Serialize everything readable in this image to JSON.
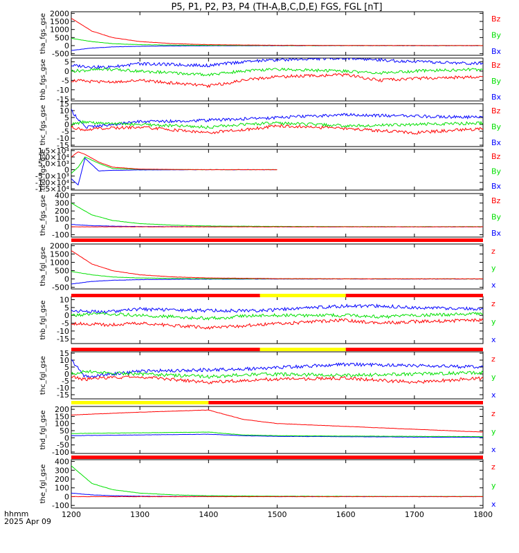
{
  "title": "P5, P1, P2, P3, P4 (TH-A,B,C,D,E) FGS, FGL [nT]",
  "time_label": "hhmm",
  "date_label": "2025 Apr 09",
  "colors": {
    "x": "#0000ff",
    "y": "#00e000",
    "z": "#ff0000",
    "flag_red": "#ff0000",
    "flag_yellow": "#ffff00"
  },
  "chart_data": [
    {
      "type": "line",
      "ylabel": "tha_fgs_gse",
      "yticks": [
        "2000",
        "1500",
        "1000",
        "500",
        "0",
        "-500"
      ],
      "ylim": [
        -600,
        2100
      ],
      "x": [
        1200,
        1230,
        1260,
        1300,
        1350,
        1400,
        1500,
        1600,
        1800
      ],
      "series": [
        {
          "name": "Bz",
          "color": "#ff0000",
          "values": [
            1700,
            900,
            500,
            250,
            120,
            60,
            20,
            10,
            5
          ]
        },
        {
          "name": "By",
          "color": "#00e000",
          "values": [
            450,
            250,
            120,
            60,
            30,
            15,
            8,
            5,
            3
          ]
        },
        {
          "name": "Bx",
          "color": "#0000ff",
          "values": [
            -300,
            -150,
            -80,
            -40,
            -20,
            -10,
            -5,
            -3,
            -2
          ]
        }
      ]
    },
    {
      "type": "line",
      "ylabel": "thb_fgs_gse",
      "yticks": [
        "5",
        "0",
        "-5",
        "-10",
        "-15"
      ],
      "ylim": [
        -16,
        7
      ],
      "x": [
        1200,
        1250,
        1300,
        1400,
        1450,
        1500,
        1600,
        1650,
        1700,
        1800
      ],
      "series": [
        {
          "name": "Bz",
          "color": "#ff0000",
          "values": [
            -5,
            -6,
            -5,
            -8,
            -5,
            -3,
            -2,
            -5,
            -4,
            -3
          ]
        },
        {
          "name": "By",
          "color": "#00e000",
          "values": [
            0,
            1,
            0,
            -2,
            0,
            1,
            0,
            -1,
            0,
            1
          ]
        },
        {
          "name": "Bx",
          "color": "#0000ff",
          "values": [
            3,
            2,
            4,
            3,
            5,
            6,
            7,
            6,
            5,
            4
          ]
        }
      ]
    },
    {
      "type": "line",
      "ylabel": "thc_fgs_gse",
      "yticks": [
        "15",
        "10",
        "5",
        "0",
        "-5",
        "-10",
        "-15"
      ],
      "ylim": [
        -16,
        15
      ],
      "x": [
        1200,
        1220,
        1240,
        1300,
        1400,
        1450,
        1500,
        1600,
        1700,
        1800
      ],
      "series": [
        {
          "name": "Bz",
          "color": "#ff0000",
          "values": [
            -2,
            -4,
            -3,
            -2,
            -6,
            -4,
            -1,
            -3,
            -6,
            -3
          ]
        },
        {
          "name": "By",
          "color": "#00e000",
          "values": [
            0,
            2,
            1,
            0,
            -2,
            0,
            1,
            -1,
            0,
            1
          ]
        },
        {
          "name": "Bx",
          "color": "#0000ff",
          "values": [
            10,
            -2,
            -1,
            2,
            3,
            4,
            5,
            7,
            6,
            5
          ]
        }
      ]
    },
    {
      "type": "line",
      "ylabel": "thd_fgs_gse",
      "yticks": [
        "1.5×10⁴",
        "1.0×10⁴",
        "5.0×10³",
        "0",
        "-5.0×10³",
        "-1.0×10⁴",
        "-1.5×10⁴"
      ],
      "ylim": [
        -16000,
        16000
      ],
      "x": [
        1200,
        1210,
        1220,
        1240,
        1260,
        1300,
        1350,
        1400,
        1500
      ],
      "series": [
        {
          "name": "Bz",
          "color": "#ff0000",
          "values": [
            10000,
            14000,
            12000,
            6000,
            2000,
            500,
            200,
            0,
            0
          ]
        },
        {
          "name": "By",
          "color": "#00e000",
          "values": [
            -3000,
            2000,
            10000,
            5000,
            1000,
            300,
            100,
            0,
            0
          ]
        },
        {
          "name": "Bx",
          "color": "#0000ff",
          "values": [
            -7000,
            -12000,
            9000,
            -1000,
            -500,
            -200,
            -100,
            0,
            0
          ]
        }
      ]
    },
    {
      "type": "line",
      "ylabel": "the_fgs_gse",
      "yticks": [
        "400",
        "300",
        "200",
        "100",
        "0",
        "-100"
      ],
      "ylim": [
        -130,
        420
      ],
      "x": [
        1200,
        1230,
        1260,
        1300,
        1350,
        1400,
        1500,
        1600,
        1700,
        1800
      ],
      "series": [
        {
          "name": "Bz",
          "color": "#ff0000",
          "values": [
            0,
            0,
            0,
            0,
            0,
            0,
            0,
            0,
            0,
            0
          ]
        },
        {
          "name": "By",
          "color": "#00e000",
          "values": [
            300,
            150,
            80,
            40,
            20,
            10,
            5,
            3,
            2,
            2
          ]
        },
        {
          "name": "Bx",
          "color": "#0000ff",
          "values": [
            30,
            15,
            8,
            4,
            2,
            1,
            0,
            0,
            0,
            0
          ]
        }
      ]
    },
    {
      "type": "line",
      "ylabel": "tha_fgl_gse",
      "yticks": [
        "2000",
        "1500",
        "1000",
        "500",
        "0",
        "-500"
      ],
      "ylim": [
        -600,
        2100
      ],
      "x": [
        1200,
        1230,
        1260,
        1300,
        1350,
        1400,
        1500,
        1600,
        1800
      ],
      "series": [
        {
          "name": "z",
          "color": "#ff0000",
          "values": [
            1700,
            900,
            500,
            250,
            120,
            60,
            20,
            10,
            5
          ]
        },
        {
          "name": "y",
          "color": "#00e000",
          "values": [
            450,
            250,
            120,
            60,
            30,
            15,
            8,
            5,
            3
          ]
        },
        {
          "name": "x",
          "color": "#0000ff",
          "values": [
            -300,
            -150,
            -80,
            -40,
            -20,
            -10,
            -5,
            -3,
            -2
          ]
        }
      ]
    },
    {
      "type": "line",
      "ylabel": "thb_fgl_gse",
      "yticks": [
        "10",
        "5",
        "0",
        "-5",
        "-10",
        "-15"
      ],
      "ylim": [
        -18,
        12
      ],
      "x": [
        1200,
        1250,
        1300,
        1400,
        1475,
        1600,
        1650,
        1700,
        1800
      ],
      "series": [
        {
          "name": "z",
          "color": "#ff0000",
          "values": [
            -5,
            -6,
            -5,
            -8,
            -6,
            -3,
            -5,
            -4,
            -3
          ]
        },
        {
          "name": "y",
          "color": "#00e000",
          "values": [
            0,
            1,
            0,
            -2,
            0,
            0,
            -1,
            0,
            1
          ]
        },
        {
          "name": "x",
          "color": "#0000ff",
          "values": [
            3,
            2,
            4,
            3,
            3,
            6,
            6,
            5,
            4
          ]
        }
      ]
    },
    {
      "type": "line",
      "ylabel": "thc_fgl_gse",
      "yticks": [
        "15",
        "10",
        "5",
        "0",
        "-5",
        "-10",
        "-15"
      ],
      "ylim": [
        -18,
        16
      ],
      "x": [
        1200,
        1220,
        1240,
        1300,
        1400,
        1475,
        1600,
        1700,
        1800
      ],
      "series": [
        {
          "name": "z",
          "color": "#ff0000",
          "values": [
            -2,
            -4,
            -3,
            -2,
            -6,
            -4,
            -3,
            -6,
            -3
          ]
        },
        {
          "name": "y",
          "color": "#00e000",
          "values": [
            0,
            2,
            1,
            0,
            -2,
            0,
            -1,
            0,
            1
          ]
        },
        {
          "name": "x",
          "color": "#0000ff",
          "values": [
            10,
            -2,
            -1,
            2,
            3,
            4,
            7,
            6,
            5
          ]
        }
      ]
    },
    {
      "type": "line",
      "ylabel": "thd_fgl_gse",
      "yticks": [
        "200",
        "150",
        "100",
        "50",
        "0",
        "-50",
        "-100"
      ],
      "ylim": [
        -110,
        220
      ],
      "x": [
        1200,
        1300,
        1400,
        1450,
        1500,
        1600,
        1700,
        1800
      ],
      "series": [
        {
          "name": "z",
          "color": "#ff0000",
          "values": [
            160,
            180,
            195,
            130,
            100,
            80,
            60,
            40
          ]
        },
        {
          "name": "y",
          "color": "#00e000",
          "values": [
            30,
            35,
            40,
            20,
            15,
            12,
            10,
            8
          ]
        },
        {
          "name": "x",
          "color": "#0000ff",
          "values": [
            15,
            20,
            25,
            15,
            10,
            8,
            5,
            3
          ]
        }
      ]
    },
    {
      "type": "line",
      "ylabel": "the_fgl_gse",
      "yticks": [
        "400",
        "300",
        "200",
        "100",
        "0",
        "-100"
      ],
      "ylim": [
        -130,
        420
      ],
      "x": [
        1200,
        1230,
        1260,
        1300,
        1350,
        1400,
        1500,
        1600,
        1700,
        1800
      ],
      "series": [
        {
          "name": "z",
          "color": "#ff0000",
          "values": [
            0,
            0,
            0,
            0,
            0,
            0,
            0,
            0,
            0,
            0
          ]
        },
        {
          "name": "y",
          "color": "#00e000",
          "values": [
            350,
            150,
            80,
            40,
            20,
            10,
            5,
            3,
            2,
            2
          ]
        },
        {
          "name": "x",
          "color": "#0000ff",
          "values": [
            40,
            20,
            10,
            5,
            2,
            1,
            0,
            0,
            0,
            0
          ]
        }
      ]
    }
  ],
  "flag_bars": [
    {
      "after_panel": 4,
      "segments": [
        {
          "from": 1200,
          "to": 1800,
          "color": "red"
        }
      ]
    },
    {
      "after_panel": 5,
      "segments": [
        {
          "from": 1200,
          "to": 1475,
          "color": "red"
        },
        {
          "from": 1475,
          "to": 1600,
          "color": "yellow"
        },
        {
          "from": 1600,
          "to": 1800,
          "color": "red"
        }
      ]
    },
    {
      "after_panel": 6,
      "segments": [
        {
          "from": 1200,
          "to": 1475,
          "color": "red"
        },
        {
          "from": 1475,
          "to": 1600,
          "color": "yellow"
        },
        {
          "from": 1600,
          "to": 1800,
          "color": "red"
        }
      ]
    },
    {
      "after_panel": 7,
      "segments": [
        {
          "from": 1200,
          "to": 1400,
          "color": "yellow"
        },
        {
          "from": 1400,
          "to": 1800,
          "color": "red"
        }
      ]
    },
    {
      "after_panel": 8,
      "segments": [
        {
          "from": 1200,
          "to": 1800,
          "color": "red"
        }
      ]
    }
  ],
  "x_axis": {
    "ticks": [
      1200,
      1300,
      1400,
      1500,
      1600,
      1700,
      1800
    ],
    "xlim": [
      1200,
      1800
    ]
  }
}
